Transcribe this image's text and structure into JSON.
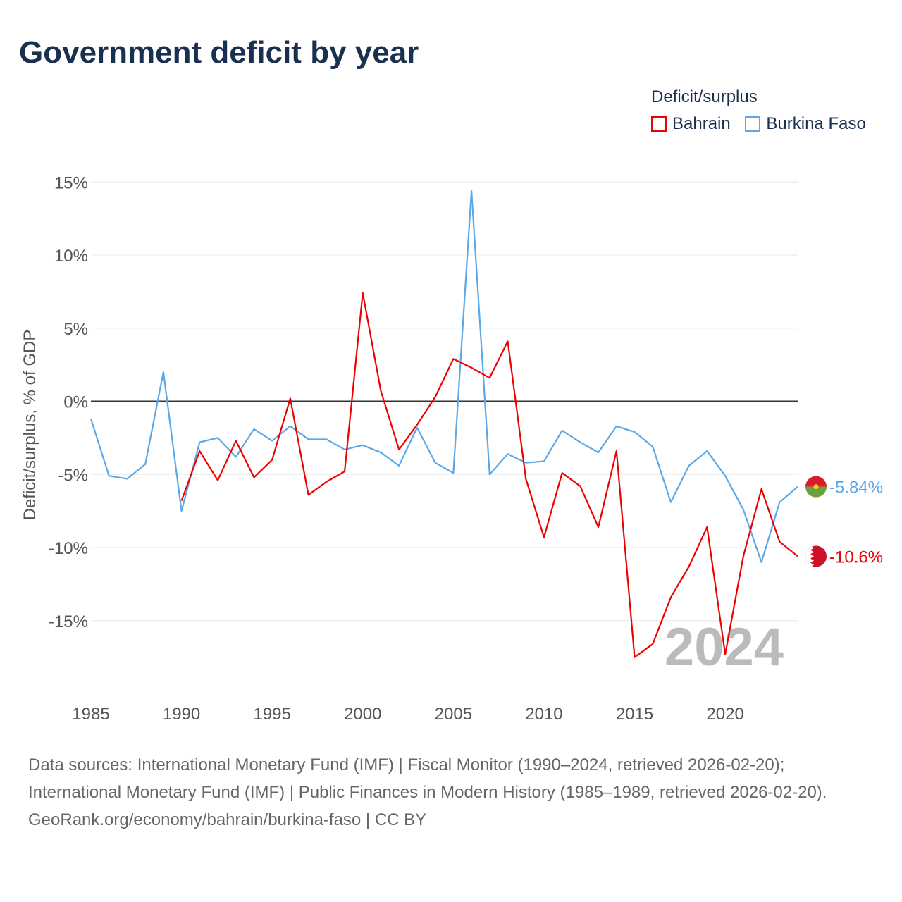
{
  "title": "Government deficit by year",
  "legend": {
    "title": "Deficit/surplus",
    "items": [
      {
        "label": "Bahrain",
        "color": "#ee0000"
      },
      {
        "label": "Burkina Faso",
        "color": "#5ba8e8"
      }
    ]
  },
  "chart_data": {
    "type": "line",
    "title": "Government deficit by year",
    "ylabel": "Deficit/surplus, % of GDP",
    "xlabel": "",
    "ylim": [
      -19,
      15.5
    ],
    "xlim": [
      1985,
      2024
    ],
    "yticks": [
      15,
      10,
      5,
      0,
      -5,
      -10,
      -15
    ],
    "ytick_labels": [
      "15%",
      "10%",
      "5%",
      "0%",
      "-5%",
      "-10%",
      "-15%"
    ],
    "xticks": [
      1985,
      1990,
      1995,
      2000,
      2005,
      2010,
      2015,
      2020
    ],
    "xtick_labels": [
      "1985",
      "1990",
      "1995",
      "2000",
      "2005",
      "2010",
      "2015",
      "2020"
    ],
    "grid": true,
    "legend_position": "top-right",
    "annotation_year": "2024",
    "series": [
      {
        "name": "Bahrain",
        "color": "#ee0000",
        "end_label": "-10.6%",
        "x_start": 1990,
        "values": [
          -6.8,
          -3.4,
          -5.4,
          -2.7,
          -5.2,
          -4.0,
          0.2,
          -6.4,
          -5.5,
          -4.8,
          7.4,
          0.7,
          -3.3,
          -1.6,
          0.3,
          2.9,
          2.3,
          1.6,
          4.1,
          -5.3,
          -9.3,
          -4.9,
          -5.8,
          -8.6,
          -3.4,
          -17.5,
          -16.6,
          -13.4,
          -11.3,
          -8.6,
          -17.3,
          -10.6,
          -6.0,
          -9.6,
          -10.6
        ]
      },
      {
        "name": "Burkina Faso",
        "color": "#5ba8e8",
        "end_label": "-5.84%",
        "x_start": 1985,
        "values": [
          -1.2,
          -5.1,
          -5.3,
          -4.3,
          2.0,
          -7.5,
          -2.8,
          -2.5,
          -3.8,
          -1.9,
          -2.7,
          -1.7,
          -2.6,
          -2.6,
          -3.3,
          -3.0,
          -3.5,
          -4.4,
          -1.8,
          -4.2,
          -4.9,
          14.4,
          -5.0,
          -3.6,
          -4.2,
          -4.1,
          -2.0,
          -2.8,
          -3.5,
          -1.7,
          -2.1,
          -3.1,
          -6.9,
          -4.4,
          -3.4,
          -5.1,
          -7.4,
          -11.0,
          -6.9,
          -5.84
        ]
      }
    ]
  },
  "sources": {
    "line1": "Data sources: International Monetary Fund (IMF) | Fiscal Monitor (1990–2024, retrieved 2026-02-20); International Monetary Fund (IMF) | Public Finances in Modern History (1985–1989, retrieved 2026-02-20).",
    "line2": "GeoRank.org/economy/bahrain/burkina-faso | CC BY"
  }
}
